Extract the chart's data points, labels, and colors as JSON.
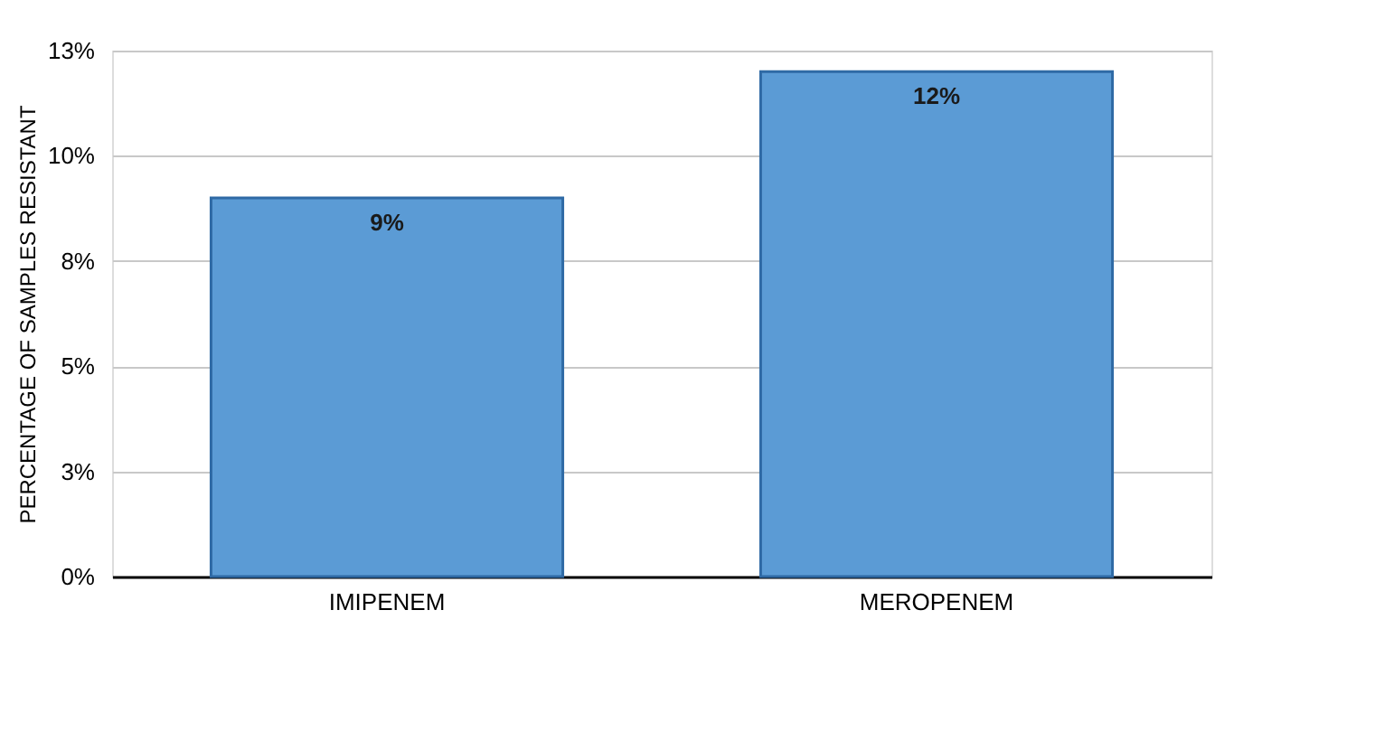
{
  "chart_data": {
    "type": "bar",
    "ylabel": "PERCENTAGE OF SAMPLES RESISTANT",
    "categories": [
      "IMIPENEM",
      "MEROPENEM"
    ],
    "values": [
      9,
      12
    ],
    "value_labels": [
      "9%",
      "12%"
    ],
    "color": "#5b9bd5",
    "ylim": [
      0,
      12.5
    ],
    "yticks": [
      {
        "value": 0,
        "label": "0%"
      },
      {
        "value": 2.5,
        "label": "3%"
      },
      {
        "value": 5,
        "label": "5%"
      },
      {
        "value": 7.5,
        "label": "8%"
      },
      {
        "value": 10,
        "label": "10%"
      },
      {
        "value": 12.5,
        "label": "13%"
      }
    ],
    "grid": "y"
  }
}
